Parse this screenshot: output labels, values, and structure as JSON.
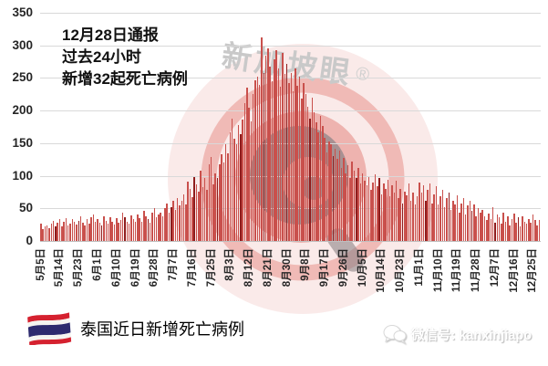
{
  "annotation": {
    "line1": "12月28日通报",
    "line2": "过去24小时",
    "line3": "新增32起死亡病例"
  },
  "watermark": {
    "text": "新加坡眼",
    "registered": "®"
  },
  "footer": {
    "title": "泰国近日新增死亡病例",
    "flag": "thailand-flag",
    "wechat_label": "微信号: kanxinjiapo"
  },
  "chart_data": {
    "type": "bar",
    "title": "泰国近日新增死亡病例",
    "xlabel": "",
    "ylabel": "",
    "ylim": [
      0,
      350
    ],
    "y_ticks": [
      0,
      50,
      100,
      150,
      200,
      250,
      300,
      350
    ],
    "grid": true,
    "start_date": "5月5日",
    "end_date": "12月28日",
    "tick_step_days": 9,
    "x_tick_labels": [
      "5月5日",
      "5月14日",
      "5月23日",
      "6月1日",
      "6月10日",
      "6月19日",
      "6月28日",
      "7月7日",
      "7月16日",
      "7月25日",
      "8月3日",
      "8月12日",
      "8月21日",
      "8月30日",
      "9月8日",
      "9月17日",
      "9月26日",
      "10月5日",
      "10月14日",
      "10月23日",
      "11月1日",
      "11月10日",
      "11月19日",
      "11月28日",
      "12月7日",
      "12月16日",
      "12月25日"
    ],
    "peak_value": 312,
    "last_value": 32,
    "bar_color": "#c9504c",
    "bar_dark_color": "#8e1c1c",
    "dark_every": 11,
    "dark_offset": 7,
    "grid_color": "#d9d9d9",
    "values": [
      27,
      18,
      22,
      24,
      19,
      26,
      31,
      23,
      28,
      34,
      22,
      29,
      35,
      24,
      27,
      33,
      29,
      25,
      31,
      38,
      28,
      24,
      34,
      26,
      36,
      41,
      30,
      33,
      28,
      24,
      38,
      31,
      27,
      36,
      30,
      25,
      35,
      28,
      32,
      44,
      36,
      30,
      26,
      39,
      33,
      29,
      41,
      35,
      30,
      46,
      38,
      33,
      28,
      43,
      51,
      36,
      40,
      44,
      38,
      50,
      57,
      44,
      52,
      61,
      48,
      66,
      55,
      62,
      72,
      56,
      91,
      80,
      67,
      98,
      87,
      75,
      108,
      82,
      96,
      78,
      118,
      129,
      87,
      104,
      97,
      118,
      133,
      121,
      148,
      134,
      166,
      188,
      157,
      149,
      178,
      164,
      186,
      212,
      235,
      205,
      184,
      225,
      246,
      252,
      239,
      312,
      258,
      284,
      296,
      267,
      245,
      278,
      292,
      264,
      236,
      288,
      256,
      272,
      242,
      257,
      230,
      264,
      238,
      252,
      218,
      242,
      226,
      206,
      188,
      220,
      198,
      182,
      166,
      192,
      176,
      158,
      136,
      152,
      148,
      130,
      142,
      126,
      138,
      112,
      128,
      104,
      116,
      96,
      122,
      108,
      96,
      112,
      88,
      104,
      92,
      86,
      98,
      78,
      90,
      102,
      84,
      96,
      72,
      88,
      80,
      94,
      68,
      86,
      74,
      92,
      66,
      80,
      58,
      76,
      70,
      88,
      62,
      74,
      56,
      68,
      90,
      74,
      86,
      62,
      78,
      88,
      58,
      72,
      84,
      56,
      68,
      78,
      52,
      66,
      74,
      48,
      62,
      56,
      70,
      44,
      58,
      66,
      40,
      54,
      62,
      46,
      56,
      38,
      50,
      44,
      48,
      38,
      32,
      42,
      34,
      52,
      28,
      40,
      36,
      26,
      44,
      30,
      38,
      24,
      34,
      42,
      28,
      36,
      22,
      38,
      30,
      26,
      34,
      28,
      40,
      32,
      24,
      32
    ]
  }
}
